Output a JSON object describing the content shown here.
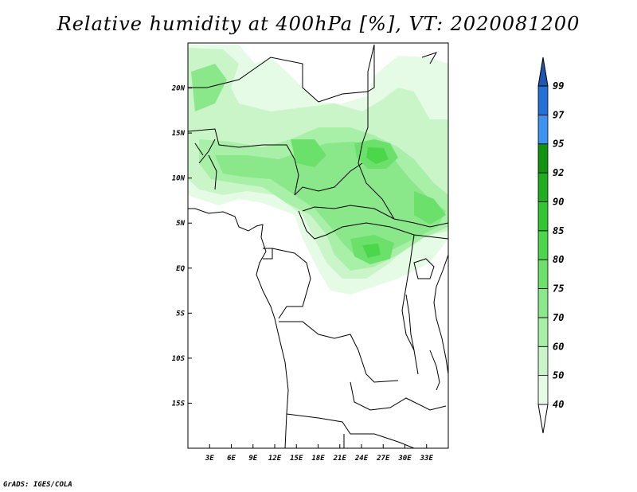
{
  "title": "Relative humidity at 400hPa [%], VT: 2020081200",
  "credit": "GrADS: IGES/COLA",
  "map": {
    "lon_range": [
      0,
      36
    ],
    "lat_range": [
      -20,
      25
    ],
    "lon_ticks": [
      "3E",
      "6E",
      "9E",
      "12E",
      "15E",
      "18E",
      "21E",
      "24E",
      "27E",
      "30E",
      "33E"
    ],
    "lat_ticks": [
      "20N",
      "15N",
      "10N",
      "5N",
      "EQ",
      "5S",
      "10S",
      "15S"
    ]
  },
  "colorbar": {
    "levels": [
      "40",
      "50",
      "60",
      "70",
      "75",
      "80",
      "85",
      "90",
      "92",
      "95",
      "97",
      "99"
    ],
    "colors": [
      "#e6fbe6",
      "#c9f5c9",
      "#a8efa8",
      "#8ae88a",
      "#6be06b",
      "#4cd64c",
      "#33c633",
      "#1fae1f",
      "#119311",
      "#3d94f0",
      "#2370d8",
      "#1f55b5"
    ]
  }
}
